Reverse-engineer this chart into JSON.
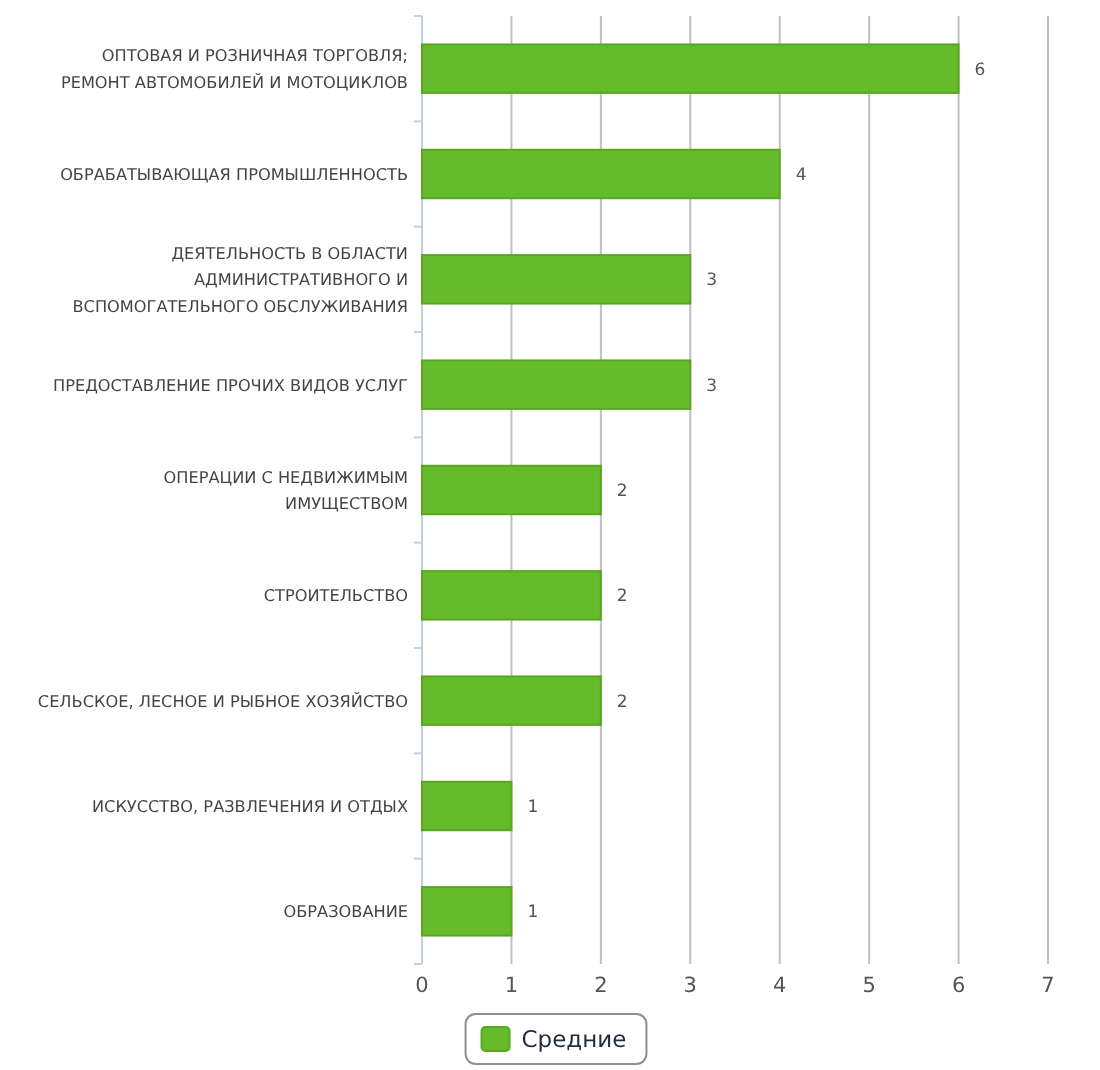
{
  "chart_data": {
    "type": "bar",
    "orientation": "horizontal",
    "categories": [
      "ОПТОВАЯ И РОЗНИЧНАЯ ТОРГОВЛЯ; РЕМОНТ АВТОМОБИЛЕЙ И МОТОЦИКЛОВ",
      "ОБРАБАТЫВАЮЩАЯ ПРОМЫШЛЕННОСТЬ",
      "ДЕЯТЕЛЬНОСТЬ В ОБЛАСТИ АДМИНИСТРАТИВНОГО И ВСПОМОГАТЕЛЬНОГО ОБСЛУЖИВАНИЯ",
      "ПРЕДОСТАВЛЕНИЕ ПРОЧИХ ВИДОВ УСЛУГ",
      "ОПЕРАЦИИ С НЕДВИЖИМЫМ ИМУЩЕСТВОМ",
      "СТРОИТЕЛЬСТВО",
      "СЕЛЬСКОЕ, ЛЕСНОЕ И РЫБНОЕ ХОЗЯЙСТВО",
      "ИСКУССТВО, РАЗВЛЕЧЕНИЯ И ОТДЫХ",
      "ОБРАЗОВАНИЕ"
    ],
    "series": [
      {
        "name": "Средние",
        "color": "#66bb2a",
        "values": [
          6,
          4,
          3,
          3,
          2,
          2,
          2,
          1,
          1
        ]
      }
    ],
    "xlim": [
      0,
      7
    ],
    "xticks": [
      0,
      1,
      2,
      3,
      4,
      5,
      6,
      7
    ],
    "grid": "x",
    "legend": "bottom",
    "data_labels": true
  }
}
